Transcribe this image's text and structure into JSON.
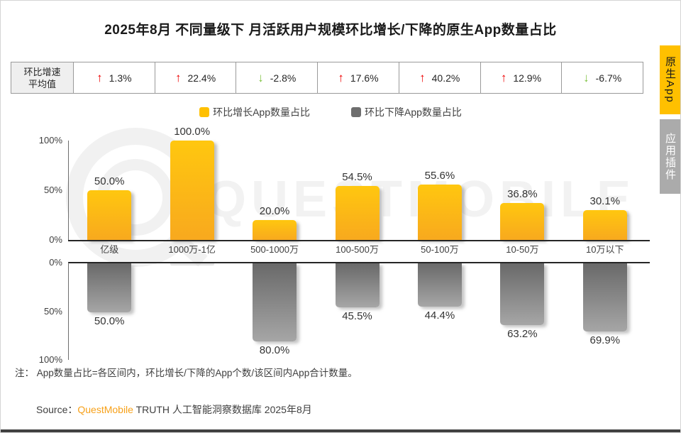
{
  "page": {
    "title": "2025年8月 不同量级下 月活跃用户规模环比增长/下降的原生App数量占比",
    "note": "注： App数量占比=各区间内，环比增长/下降的App个数/该区间内App合计数量。",
    "source": {
      "prefix": "Source：",
      "brand": "QuestMobile",
      "suffix": " TRUTH 人工智能洞察数据库 2025年8月"
    },
    "watermark_text": "QUESTMOBILE"
  },
  "stats_row": {
    "header_line1": "环比增速",
    "header_line2": "平均值",
    "cells": [
      {
        "direction": "up",
        "value": "1.3%"
      },
      {
        "direction": "up",
        "value": "22.4%"
      },
      {
        "direction": "down",
        "value": "-2.8%"
      },
      {
        "direction": "up",
        "value": "17.6%"
      },
      {
        "direction": "up",
        "value": "40.2%"
      },
      {
        "direction": "up",
        "value": "12.9%"
      },
      {
        "direction": "down",
        "value": "-6.7%"
      }
    ]
  },
  "legend": [
    {
      "label": "环比增长App数量占比",
      "color": "#FFC000"
    },
    {
      "label": "环比下降App数量占比",
      "color": "#6E6E6E"
    }
  ],
  "side_tabs": [
    {
      "label": "原生App",
      "active": true
    },
    {
      "label": "应用插件",
      "active": false
    }
  ],
  "colors": {
    "growth_bar": "#FFC000",
    "decline_bar": "#808080",
    "up_arrow": "#EE0000",
    "down_arrow": "#7EC241",
    "brand_orange": "#F7A11A"
  },
  "chart_data": {
    "type": "bar",
    "title": "2025年8月 不同量级下 月活跃用户规模环比增长/下降的原生App数量占比",
    "categories": [
      "亿级",
      "1000万-1亿",
      "500-1000万",
      "100-500万",
      "50-100万",
      "10-50万",
      "10万以下"
    ],
    "series": [
      {
        "name": "环比增长App数量占比",
        "direction": "up",
        "values": [
          50.0,
          100.0,
          20.0,
          54.5,
          55.6,
          36.8,
          30.1
        ],
        "labels": [
          "50.0%",
          "100.0%",
          "20.0%",
          "54.5%",
          "55.6%",
          "36.8%",
          "30.1%"
        ]
      },
      {
        "name": "环比下降App数量占比",
        "direction": "down",
        "values": [
          50.0,
          0.0,
          80.0,
          45.5,
          44.4,
          63.2,
          69.9
        ],
        "labels": [
          "50.0%",
          "",
          "80.0%",
          "45.5%",
          "44.4%",
          "63.2%",
          "69.9%"
        ]
      }
    ],
    "growth_rate_avg": [
      "1.3%",
      "22.4%",
      "-2.8%",
      "17.6%",
      "40.2%",
      "12.9%",
      "-6.7%"
    ],
    "y_ticks_top": [
      "100%",
      "50%",
      "0%"
    ],
    "y_ticks_bottom": [
      "0%",
      "50%",
      "100%"
    ],
    "ylim": [
      0,
      100
    ],
    "grid": false,
    "legend_position": "top-center"
  }
}
